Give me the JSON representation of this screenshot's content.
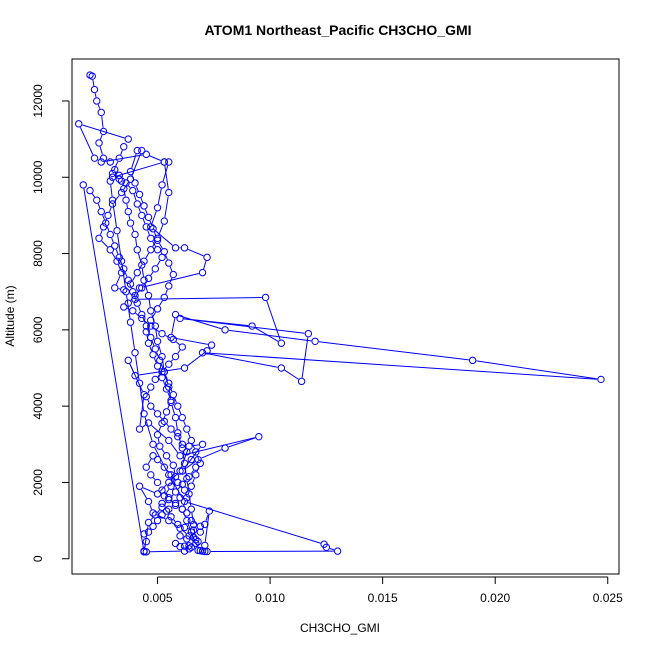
{
  "chart_data": {
    "type": "line",
    "title": "ATOM1 Northeast_Pacific CH3CHO_GMI",
    "xlabel": "CH3CHO_GMI",
    "ylabel": "Altitude (m)",
    "xlim": [
      0.0012,
      0.0255
    ],
    "ylim": [
      -400,
      13100
    ],
    "xticks": [
      {
        "value": 0.005,
        "label": "0.005"
      },
      {
        "value": 0.01,
        "label": "0.010"
      },
      {
        "value": 0.015,
        "label": "0.015"
      },
      {
        "value": 0.02,
        "label": "0.020"
      },
      {
        "value": 0.025,
        "label": "0.025"
      }
    ],
    "yticks": [
      {
        "value": 0,
        "label": "0"
      },
      {
        "value": 2000,
        "label": "2000"
      },
      {
        "value": 4000,
        "label": "4000"
      },
      {
        "value": 6000,
        "label": "6000"
      },
      {
        "value": 8000,
        "label": "8000"
      },
      {
        "value": 10000,
        "label": "10000"
      },
      {
        "value": 12000,
        "label": "12000"
      }
    ],
    "grid": false,
    "series": [
      {
        "color": "#0000ff",
        "marker": "open-circle",
        "points": [
          [
            0.002,
            12680
          ],
          [
            0.0021,
            12650
          ],
          [
            0.0022,
            12300
          ],
          [
            0.0023,
            12000
          ],
          [
            0.0025,
            11700
          ],
          [
            0.0026,
            11200
          ],
          [
            0.0024,
            10900
          ],
          [
            0.0026,
            10500
          ],
          [
            0.0029,
            10400
          ],
          [
            0.0031,
            10200
          ],
          [
            0.0033,
            10050
          ],
          [
            0.0034,
            9900
          ],
          [
            0.0035,
            9700
          ],
          [
            0.0036,
            9400
          ],
          [
            0.0037,
            9100
          ],
          [
            0.0038,
            8800
          ],
          [
            0.004,
            8500
          ],
          [
            0.0041,
            8100
          ],
          [
            0.0043,
            7700
          ],
          [
            0.0044,
            7300
          ],
          [
            0.0046,
            6900
          ],
          [
            0.0047,
            6500
          ],
          [
            0.0049,
            6100
          ],
          [
            0.005,
            5700
          ],
          [
            0.0052,
            5300
          ],
          [
            0.0053,
            4900
          ],
          [
            0.0055,
            4500
          ],
          [
            0.0056,
            4100
          ],
          [
            0.0058,
            3700
          ],
          [
            0.0059,
            3300
          ],
          [
            0.0061,
            2900
          ],
          [
            0.0062,
            2500
          ],
          [
            0.0063,
            2100
          ],
          [
            0.0064,
            1700
          ],
          [
            0.0065,
            1300
          ],
          [
            0.0066,
            900
          ],
          [
            0.0067,
            500
          ],
          [
            0.0068,
            220
          ],
          [
            0.007,
            200
          ],
          [
            0.0072,
            190
          ],
          [
            0.013,
            200
          ],
          [
            0.0125,
            300
          ],
          [
            0.0124,
            380
          ],
          [
            0.0062,
            1500
          ],
          [
            0.0055,
            2200
          ],
          [
            0.0048,
            3000
          ],
          [
            0.0044,
            3800
          ],
          [
            0.0042,
            4600
          ],
          [
            0.004,
            5400
          ],
          [
            0.0038,
            6200
          ],
          [
            0.0036,
            7000
          ],
          [
            0.0034,
            7800
          ],
          [
            0.0032,
            8600
          ],
          [
            0.003,
            9400
          ],
          [
            0.0029,
            9900
          ],
          [
            0.003,
            10100
          ],
          [
            0.0033,
            10500
          ],
          [
            0.0035,
            10800
          ],
          [
            0.0037,
            11000
          ],
          [
            0.0015,
            11400
          ],
          [
            0.0022,
            10500
          ],
          [
            0.0025,
            10400
          ],
          [
            0.0045,
            10600
          ],
          [
            0.0053,
            10400
          ],
          [
            0.0055,
            10400
          ],
          [
            0.0052,
            9800
          ],
          [
            0.005,
            9200
          ],
          [
            0.0047,
            8700
          ],
          [
            0.0058,
            8150
          ],
          [
            0.0062,
            8150
          ],
          [
            0.0072,
            7900
          ],
          [
            0.007,
            7500
          ],
          [
            0.0042,
            7100
          ],
          [
            0.004,
            6800
          ],
          [
            0.0098,
            6850
          ],
          [
            0.0105,
            5650
          ],
          [
            0.0092,
            6100
          ],
          [
            0.006,
            6300
          ],
          [
            0.0117,
            5900
          ],
          [
            0.0114,
            4650
          ],
          [
            0.0105,
            5000
          ],
          [
            0.007,
            5400
          ],
          [
            0.0247,
            4700
          ],
          [
            0.019,
            5200
          ],
          [
            0.012,
            5700
          ],
          [
            0.008,
            6000
          ],
          [
            0.0058,
            6400
          ],
          [
            0.0056,
            5800
          ],
          [
            0.0074,
            5600
          ],
          [
            0.0072,
            5450
          ],
          [
            0.0062,
            5000
          ],
          [
            0.004,
            4800
          ],
          [
            0.0037,
            5200
          ],
          [
            0.0044,
            4300
          ],
          [
            0.0042,
            3400
          ],
          [
            0.0046,
            3560
          ],
          [
            0.0055,
            3100
          ],
          [
            0.006,
            2700
          ],
          [
            0.0095,
            3200
          ],
          [
            0.008,
            2900
          ],
          [
            0.0068,
            2600
          ],
          [
            0.0061,
            2300
          ],
          [
            0.007,
            3000
          ],
          [
            0.0064,
            2950
          ],
          [
            0.006,
            2300
          ],
          [
            0.0055,
            2000
          ],
          [
            0.005,
            1700
          ],
          [
            0.0042,
            1900
          ],
          [
            0.0046,
            1500
          ],
          [
            0.0048,
            1200
          ],
          [
            0.0055,
            1000
          ],
          [
            0.006,
            800
          ],
          [
            0.0064,
            600
          ],
          [
            0.0068,
            450
          ],
          [
            0.0071,
            350
          ],
          [
            0.0073,
            1250
          ],
          [
            0.0071,
            900
          ],
          [
            0.0069,
            850
          ],
          [
            0.0065,
            1000
          ],
          [
            0.0063,
            1200
          ],
          [
            0.0061,
            1300
          ],
          [
            0.0058,
            1400
          ],
          [
            0.0055,
            1600
          ],
          [
            0.0052,
            1800
          ],
          [
            0.005,
            2000
          ],
          [
            0.0047,
            2200
          ],
          [
            0.0045,
            2400
          ],
          [
            0.0048,
            2700
          ],
          [
            0.005,
            2600
          ],
          [
            0.0053,
            2400
          ],
          [
            0.0056,
            2200
          ],
          [
            0.0059,
            2000
          ],
          [
            0.0062,
            1800
          ],
          [
            0.006,
            1600
          ],
          [
            0.0058,
            1450
          ],
          [
            0.0055,
            1300
          ],
          [
            0.0052,
            1150
          ],
          [
            0.005,
            1000
          ],
          [
            0.0048,
            850
          ],
          [
            0.0046,
            700
          ],
          [
            0.0044,
            650
          ],
          [
            0.0045,
            450
          ],
          [
            0.0044,
            200
          ],
          [
            0.0045,
            180
          ],
          [
            0.0062,
            200
          ],
          [
            0.0064,
            260
          ],
          [
            0.0065,
            300
          ],
          [
            0.0064,
            340
          ],
          [
            0.0062,
            330
          ],
          [
            0.006,
            320
          ],
          [
            0.0058,
            400
          ],
          [
            0.006,
            600
          ],
          [
            0.0063,
            520
          ],
          [
            0.0066,
            560
          ],
          [
            0.0069,
            700
          ],
          [
            0.0066,
            750
          ],
          [
            0.0062,
            820
          ],
          [
            0.0059,
            900
          ],
          [
            0.0056,
            1100
          ],
          [
            0.0054,
            1250
          ],
          [
            0.0052,
            1450
          ],
          [
            0.0053,
            1650
          ],
          [
            0.0056,
            1900
          ],
          [
            0.0058,
            2150
          ],
          [
            0.0057,
            2450
          ],
          [
            0.0054,
            2700
          ],
          [
            0.0051,
            2950
          ],
          [
            0.005,
            3250
          ],
          [
            0.0052,
            3550
          ],
          [
            0.0054,
            3850
          ],
          [
            0.0056,
            4150
          ],
          [
            0.0054,
            4450
          ],
          [
            0.0052,
            4750
          ],
          [
            0.005,
            5050
          ],
          [
            0.0048,
            5350
          ],
          [
            0.0046,
            5650
          ],
          [
            0.0045,
            5950
          ],
          [
            0.0047,
            6250
          ],
          [
            0.005,
            6550
          ],
          [
            0.0053,
            6850
          ],
          [
            0.0055,
            7150
          ],
          [
            0.0057,
            7450
          ],
          [
            0.0055,
            7750
          ],
          [
            0.0053,
            8050
          ],
          [
            0.005,
            8350
          ],
          [
            0.0048,
            8650
          ],
          [
            0.0046,
            8950
          ],
          [
            0.0044,
            9250
          ],
          [
            0.0042,
            9550
          ],
          [
            0.004,
            9850
          ],
          [
            0.0038,
            10150
          ],
          [
            0.0041,
            10700
          ],
          [
            0.0043,
            10700
          ],
          [
            0.0038,
            9950
          ],
          [
            0.0034,
            9600
          ],
          [
            0.003,
            9300
          ],
          [
            0.0028,
            9000
          ],
          [
            0.0026,
            8700
          ],
          [
            0.0024,
            8400
          ],
          [
            0.0029,
            8100
          ],
          [
            0.0032,
            7800
          ],
          [
            0.0034,
            7500
          ],
          [
            0.0031,
            7100
          ],
          [
            0.0035,
            7050
          ],
          [
            0.0038,
            7200
          ],
          [
            0.0041,
            7500
          ],
          [
            0.0044,
            7800
          ],
          [
            0.0047,
            8100
          ],
          [
            0.005,
            8400
          ],
          [
            0.0053,
            8850
          ],
          [
            0.0055,
            9600
          ],
          [
            0.0053,
            10400
          ],
          [
            0.003,
            10000
          ],
          [
            0.0033,
            9950
          ],
          [
            0.0036,
            9850
          ],
          [
            0.0039,
            9650
          ],
          [
            0.0041,
            9300
          ],
          [
            0.0043,
            9000
          ],
          [
            0.0045,
            8700
          ],
          [
            0.0047,
            8400
          ],
          [
            0.005,
            8100
          ],
          [
            0.0052,
            7900
          ],
          [
            0.0049,
            7600
          ],
          [
            0.0046,
            7350
          ],
          [
            0.0043,
            7100
          ],
          [
            0.004,
            6900
          ],
          [
            0.0037,
            6700
          ],
          [
            0.0035,
            6600
          ],
          [
            0.0039,
            6500
          ],
          [
            0.0043,
            6300
          ],
          [
            0.0047,
            6100
          ],
          [
            0.0052,
            5900
          ],
          [
            0.0057,
            5750
          ],
          [
            0.0061,
            5550
          ],
          [
            0.0058,
            5300
          ],
          [
            0.0055,
            5100
          ],
          [
            0.0052,
            4900
          ],
          [
            0.0049,
            4700
          ],
          [
            0.0047,
            4500
          ],
          [
            0.0045,
            4250
          ],
          [
            0.0047,
            4000
          ],
          [
            0.005,
            3800
          ],
          [
            0.0053,
            3600
          ],
          [
            0.0056,
            3400
          ],
          [
            0.0059,
            3200
          ],
          [
            0.0061,
            3000
          ],
          [
            0.0063,
            2800
          ],
          [
            0.0065,
            2600
          ],
          [
            0.0067,
            2400
          ],
          [
            0.0064,
            2150
          ],
          [
            0.0061,
            1950
          ],
          [
            0.0058,
            1750
          ],
          [
            0.0055,
            1550
          ],
          [
            0.0052,
            1350
          ],
          [
            0.0049,
            1150
          ],
          [
            0.0046,
            950
          ],
          [
            0.0044,
            180
          ],
          [
            0.0017,
            9800
          ],
          [
            0.002,
            9650
          ],
          [
            0.0023,
            9400
          ],
          [
            0.0025,
            9100
          ],
          [
            0.0027,
            8800
          ],
          [
            0.0029,
            8500
          ],
          [
            0.0031,
            8200
          ],
          [
            0.0033,
            7900
          ],
          [
            0.0035,
            7600
          ],
          [
            0.0037,
            7300
          ],
          [
            0.0039,
            7000
          ],
          [
            0.0041,
            6700
          ],
          [
            0.0043,
            6400
          ],
          [
            0.0045,
            6100
          ],
          [
            0.0047,
            5800
          ],
          [
            0.0049,
            5500
          ],
          [
            0.0051,
            5200
          ],
          [
            0.0053,
            4900
          ],
          [
            0.0055,
            4600
          ],
          [
            0.0057,
            4300
          ],
          [
            0.0059,
            4000
          ],
          [
            0.0061,
            3700
          ],
          [
            0.0063,
            3400
          ],
          [
            0.0065,
            3100
          ],
          [
            0.0067,
            2800
          ],
          [
            0.0069,
            2500
          ],
          [
            0.0067,
            2200
          ],
          [
            0.0065,
            1900
          ],
          [
            0.0063,
            1600
          ],
          [
            0.0061,
            1300
          ],
          [
            0.0063,
            1000
          ],
          [
            0.0065,
            700
          ],
          [
            0.0067,
            400
          ],
          [
            0.0069,
            210
          ],
          [
            0.0071,
            190
          ]
        ]
      }
    ]
  }
}
